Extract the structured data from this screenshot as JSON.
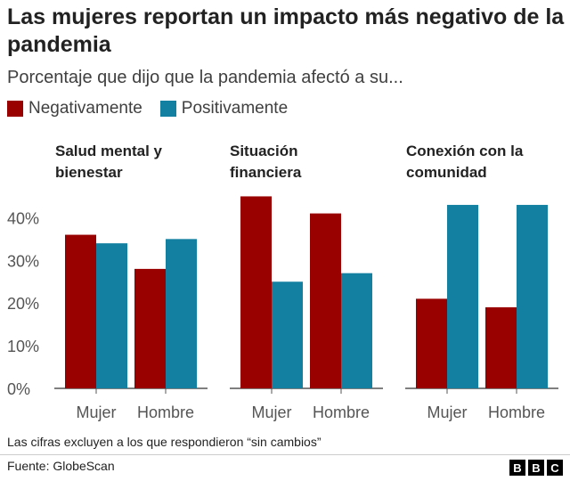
{
  "chart_data": {
    "type": "bar",
    "title": "Las mujeres reportan un impacto más negativo de la pandemia",
    "subtitle": "Porcentaje que dijo que la pandemia afectó a su...",
    "ylim": [
      0,
      45
    ],
    "yticks": [
      "0%",
      "10%",
      "20%",
      "30%",
      "40%"
    ],
    "categories": [
      "Mujer",
      "Hombre"
    ],
    "series_names": [
      "Negativamente",
      "Positivamente"
    ],
    "colors": {
      "Negativamente": "#990000",
      "Positivamente": "#1380A1"
    },
    "legend": "top-left",
    "grid": false,
    "panels": [
      {
        "title": "Salud mental y bienestar",
        "series": [
          {
            "name": "Negativamente",
            "values": [
              36,
              28
            ]
          },
          {
            "name": "Positivamente",
            "values": [
              34,
              35
            ]
          }
        ]
      },
      {
        "title": "Situación financiera",
        "series": [
          {
            "name": "Negativamente",
            "values": [
              45,
              41
            ]
          },
          {
            "name": "Positivamente",
            "values": [
              25,
              27
            ]
          }
        ]
      },
      {
        "title": "Conexión con la comunidad",
        "series": [
          {
            "name": "Negativamente",
            "values": [
              21,
              19
            ]
          },
          {
            "name": "Positivamente",
            "values": [
              43,
              43
            ]
          }
        ]
      }
    ]
  },
  "note": "Las cifras excluyen a los que respondieron “sin cambios”",
  "source": "Fuente: GlobeScan",
  "logo": [
    "B",
    "B",
    "C"
  ]
}
